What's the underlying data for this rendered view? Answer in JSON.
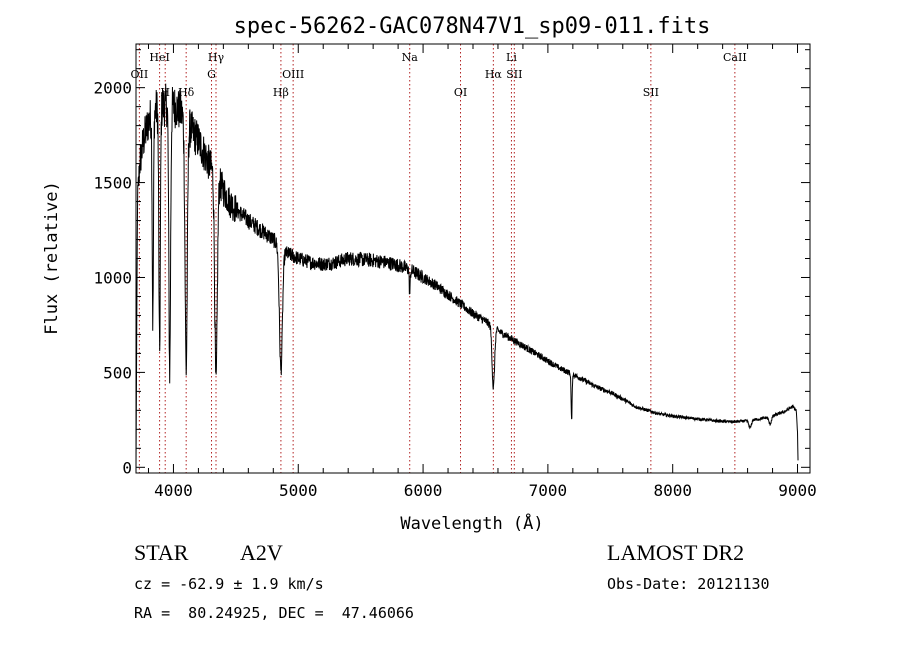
{
  "chart_data": {
    "type": "line",
    "title": "spec-56262-GAC078N47V1_sp09-011.fits",
    "xlabel": "Wavelength (Å)",
    "ylabel": "Flux (relative)",
    "xlim": [
      3700,
      9100
    ],
    "ylim": [
      -30,
      2230
    ],
    "x_ticks": [
      4000,
      5000,
      6000,
      7000,
      8000,
      9000
    ],
    "y_ticks": [
      0,
      500,
      1000,
      1500,
      2000
    ],
    "grid": false,
    "line_color": "#000000",
    "marker_color": "#b22222",
    "continuum": [
      [
        3700,
        0
      ],
      [
        3712,
        1400
      ],
      [
        3730,
        1600
      ],
      [
        3760,
        1720
      ],
      [
        3800,
        1820
      ],
      [
        3850,
        1880
      ],
      [
        3900,
        1900
      ],
      [
        3950,
        1910
      ],
      [
        4000,
        1905
      ],
      [
        4050,
        1880
      ],
      [
        4100,
        1820
      ],
      [
        4150,
        1770
      ],
      [
        4200,
        1720
      ],
      [
        4250,
        1650
      ],
      [
        4300,
        1580
      ],
      [
        4350,
        1520
      ],
      [
        4400,
        1460
      ],
      [
        4450,
        1400
      ],
      [
        4500,
        1360
      ],
      [
        4600,
        1300
      ],
      [
        4700,
        1250
      ],
      [
        4800,
        1200
      ],
      [
        4900,
        1130
      ],
      [
        5000,
        1100
      ],
      [
        5100,
        1080
      ],
      [
        5200,
        1070
      ],
      [
        5300,
        1080
      ],
      [
        5400,
        1100
      ],
      [
        5500,
        1095
      ],
      [
        5600,
        1090
      ],
      [
        5700,
        1080
      ],
      [
        5800,
        1065
      ],
      [
        5900,
        1040
      ],
      [
        6000,
        1000
      ],
      [
        6100,
        960
      ],
      [
        6200,
        910
      ],
      [
        6300,
        860
      ],
      [
        6400,
        810
      ],
      [
        6500,
        770
      ],
      [
        6600,
        720
      ],
      [
        6700,
        680
      ],
      [
        6800,
        640
      ],
      [
        6900,
        600
      ],
      [
        7000,
        560
      ],
      [
        7100,
        520
      ],
      [
        7200,
        490
      ],
      [
        7300,
        455
      ],
      [
        7400,
        420
      ],
      [
        7500,
        395
      ],
      [
        7600,
        360
      ],
      [
        7700,
        320
      ],
      [
        7800,
        300
      ],
      [
        7900,
        280
      ],
      [
        8000,
        270
      ],
      [
        8100,
        262
      ],
      [
        8200,
        255
      ],
      [
        8300,
        248
      ],
      [
        8400,
        242
      ],
      [
        8500,
        240
      ],
      [
        8600,
        245
      ],
      [
        8700,
        255
      ],
      [
        8800,
        270
      ],
      [
        8900,
        295
      ],
      [
        8960,
        320
      ],
      [
        8990,
        300
      ],
      [
        9000,
        180
      ],
      [
        9005,
        0
      ]
    ],
    "absorption_lines": [
      {
        "center": 3835,
        "depth": 1100,
        "width": 5
      },
      {
        "center": 3889,
        "depth": 1300,
        "width": 6
      },
      {
        "center": 3970,
        "depth": 1400,
        "width": 7
      },
      {
        "center": 4102,
        "depth": 1300,
        "width": 9
      },
      {
        "center": 4341,
        "depth": 1100,
        "width": 10
      },
      {
        "center": 4861,
        "depth": 650,
        "width": 12
      },
      {
        "center": 5893,
        "depth": 130,
        "width": 4
      },
      {
        "center": 6563,
        "depth": 320,
        "width": 10
      },
      {
        "center": 7190,
        "depth": 250,
        "width": 4
      },
      {
        "center": 8620,
        "depth": 40,
        "width": 10
      },
      {
        "center": 8780,
        "depth": 40,
        "width": 10
      }
    ],
    "line_markers": [
      {
        "label": "OII",
        "x": 3727,
        "row": 2
      },
      {
        "label": "H",
        "x": 3934,
        "row": 3
      },
      {
        "label": "HeI",
        "x": 3889,
        "row": 1
      },
      {
        "label": "Hδ",
        "x": 4102,
        "row": 3
      },
      {
        "label": "Hγ",
        "x": 4341,
        "row": 1
      },
      {
        "label": "G",
        "x": 4305,
        "row": 2
      },
      {
        "label": "Hβ",
        "x": 4861,
        "row": 3
      },
      {
        "label": "OIII",
        "x": 4959,
        "row": 2
      },
      {
        "label": "Na",
        "x": 5893,
        "row": 1
      },
      {
        "label": "OI",
        "x": 6300,
        "row": 3
      },
      {
        "label": "Hα",
        "x": 6563,
        "row": 2
      },
      {
        "label": "Li",
        "x": 6708,
        "row": 1
      },
      {
        "label": "SII",
        "x": 6731,
        "row": 2
      },
      {
        "label": "SII",
        "x": 7825,
        "row": 3
      },
      {
        "label": "CaII",
        "x": 8498,
        "row": 1
      }
    ]
  },
  "info": {
    "object_type": "STAR",
    "subclass": "A2V",
    "survey": "LAMOST DR2",
    "cz": "cz = -62.9 ± 1.9 km/s",
    "coords": "RA =  80.24925, DEC =  47.46066",
    "obs_date": "Obs-Date: 20121130"
  }
}
